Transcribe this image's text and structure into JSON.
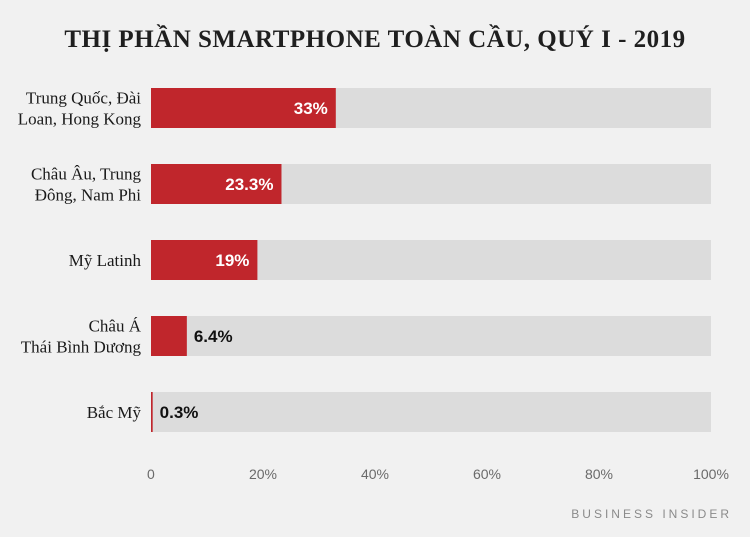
{
  "title": "THỊ PHẦN SMARTPHONE TOÀN CẦU, QUÝ I - 2019",
  "source": "BUSINESS INSIDER",
  "colors": {
    "bar": "#c0262c",
    "track": "#dcdcdc",
    "background": "#f1f1f1"
  },
  "chart_data": {
    "type": "bar",
    "orientation": "horizontal",
    "title": "THỊ PHẦN SMARTPHONE TOÀN CẦU, QUÝ I - 2019",
    "categories": [
      [
        "Trung Quốc, Đài",
        "Loan, Hong Kong"
      ],
      [
        "Châu Âu, Trung",
        "Đông, Nam Phi"
      ],
      [
        "Mỹ Latinh"
      ],
      [
        "Châu Á",
        "Thái Bình Dương"
      ],
      [
        "Bắc Mỹ"
      ]
    ],
    "values": [
      33,
      23.3,
      19,
      6.4,
      0.3
    ],
    "value_labels": [
      "33%",
      "23.3%",
      "19%",
      "6.4%",
      "0.3%"
    ],
    "xlim": [
      0,
      100
    ],
    "ticks": [
      0,
      20,
      40,
      60,
      80,
      100
    ],
    "tick_labels": [
      "0",
      "20%",
      "40%",
      "60%",
      "80%",
      "100%"
    ],
    "grid": false,
    "legend": "none"
  }
}
